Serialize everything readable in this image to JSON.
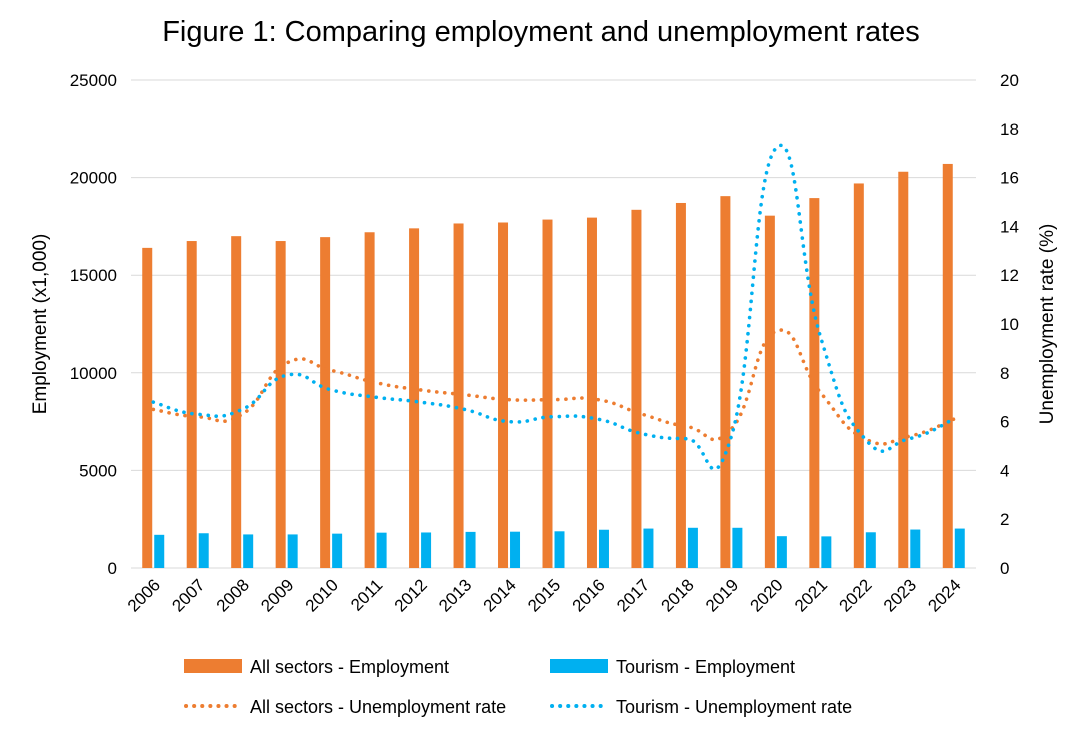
{
  "chart_data": {
    "type": "bar",
    "title": "Figure 1: Comparing employment and unemployment rates",
    "ylabel": "Employment (x1,000)",
    "y2label": "Unemployment rate (%)",
    "ylim": [
      0,
      25000
    ],
    "yticks": [
      0,
      5000,
      10000,
      15000,
      20000,
      25000
    ],
    "y2lim": [
      0,
      20
    ],
    "y2ticks": [
      0,
      2,
      4,
      6,
      8,
      10,
      12,
      14,
      16,
      18,
      20
    ],
    "grid": true,
    "legend_position": "bottom",
    "categories": [
      "2006",
      "2007",
      "2008",
      "2009",
      "2010",
      "2011",
      "2012",
      "2013",
      "2014",
      "2015",
      "2016",
      "2017",
      "2018",
      "2019",
      "2020",
      "2021",
      "2022",
      "2023",
      "2024"
    ],
    "series": [
      {
        "name": "All sectors - Employment",
        "kind": "bar",
        "axis": "left",
        "color": "#ED7D31",
        "values": [
          16400,
          16750,
          17000,
          16750,
          16950,
          17200,
          17400,
          17650,
          17700,
          17850,
          17950,
          18350,
          18700,
          19050,
          18050,
          18950,
          19700,
          20300,
          20700
        ]
      },
      {
        "name": "Tourism - Employment",
        "kind": "bar",
        "axis": "left",
        "color": "#00B0F0",
        "values": [
          1700,
          1780,
          1720,
          1720,
          1760,
          1810,
          1820,
          1850,
          1860,
          1880,
          1960,
          2020,
          2060,
          2060,
          1630,
          1620,
          1830,
          1970,
          2020
        ]
      },
      {
        "name": "All sectors - Unemployment rate",
        "kind": "line",
        "axis": "right",
        "color": "#ED7D31",
        "values": [
          6.5,
          6.2,
          6.3,
          8.4,
          8.1,
          7.6,
          7.3,
          7.1,
          6.9,
          6.9,
          6.9,
          6.3,
          5.8,
          5.7,
          9.7,
          7.2,
          5.3,
          5.4,
          6.1
        ]
      },
      {
        "name": "Tourism - Unemployment rate",
        "kind": "line",
        "axis": "right",
        "color": "#00B0F0",
        "values": [
          6.8,
          6.3,
          6.5,
          7.9,
          7.3,
          7.0,
          6.8,
          6.5,
          6.0,
          6.2,
          6.1,
          5.5,
          5.3,
          5.4,
          17.2,
          9.5,
          5.3,
          5.3,
          6.1
        ]
      }
    ]
  }
}
